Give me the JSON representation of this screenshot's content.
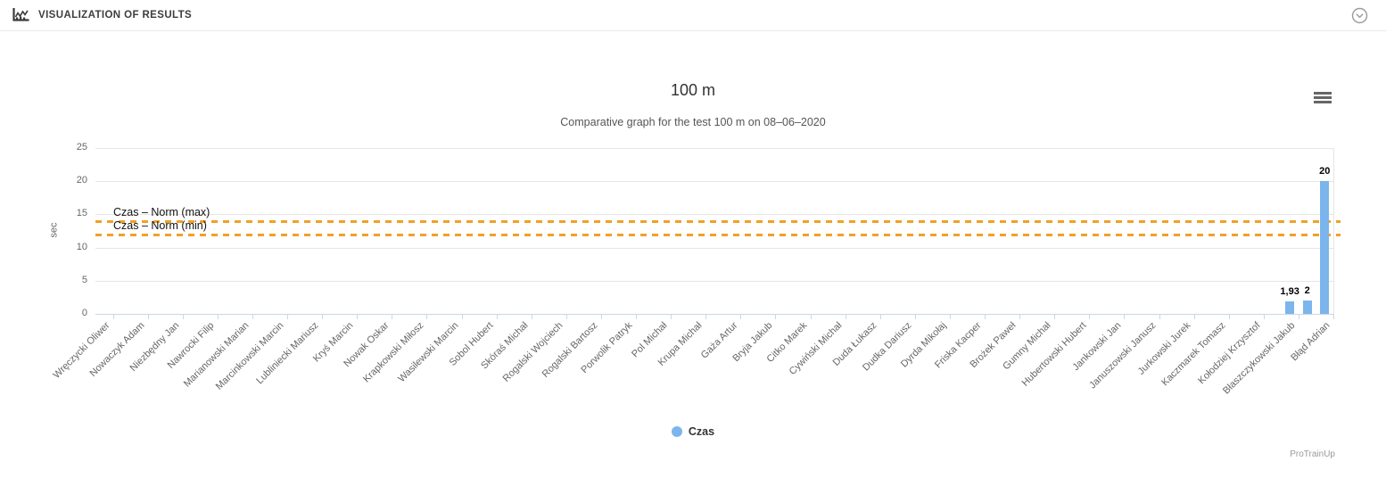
{
  "header": {
    "title": "VISUALIZATION OF RESULTS"
  },
  "chart_data": {
    "type": "bar",
    "title": "100 m",
    "subtitle": "Comparative graph for the test 100 m on 08–06–2020",
    "xlabel": "",
    "ylabel": "sec",
    "ylim": [
      0,
      25
    ],
    "yticks": [
      0,
      5,
      10,
      15,
      20,
      25
    ],
    "grid": true,
    "legend_position": "bottom-center",
    "credits": "ProTrainUp",
    "bar_color": "#7cb5ec",
    "norm_line_color": "#f0a127",
    "total_slots": 71,
    "categories": [
      "Wręczycki Oliwer",
      "Nowaczyk Adam",
      "Niezbędny Jan",
      "Nawrocki Filip",
      "Marianowski Marian",
      "Marcinkowski Marcin",
      "Lubliniecki Mariusz",
      "Kryś Marcin",
      "Nowak Oskar",
      "Krapkowski Miłosz",
      "Wasilewski Marcin",
      "Sobol Hubert",
      "Skóraś Michał",
      "Rogalski Wojciech",
      "Rogalski Bartosz",
      "Porwolik Patryk",
      "Pol Michał",
      "Krupa Michał",
      "Gaża Artur",
      "Bryja Jakub",
      "Citko Marek",
      "Cywiński Michał",
      "Duda Łukasz",
      "Dudka Dariusz",
      "Dyrda Mikołaj",
      "Friska Kacper",
      "Brożek Paweł",
      "Gumny Michał",
      "Hubertowski Hubert",
      "Jankowski Jan",
      "Januszowski Janusz",
      "Jurkowski Jurek",
      "Kaczmarek Tomasz",
      "Kołodziej Krzysztof",
      "Błaszczykowski Jakub",
      "Błąd Adrian"
    ],
    "plot_lines": [
      {
        "label": "Czas – Norm (max)",
        "value": 14,
        "style": "dashed"
      },
      {
        "label": "Czas – Norm (min)",
        "value": 12,
        "style": "dashed"
      }
    ],
    "series": [
      {
        "name": "Czas",
        "color": "#7cb5ec",
        "points": [
          {
            "category": "Błaszczykowski Jakub",
            "slot": 68,
            "value": 1.93,
            "label": "1,93"
          },
          {
            "category": "",
            "slot": 69,
            "value": 2,
            "label": "2"
          },
          {
            "category": "Błąd Adrian",
            "slot": 70,
            "value": 20,
            "label": "20"
          }
        ]
      }
    ]
  }
}
